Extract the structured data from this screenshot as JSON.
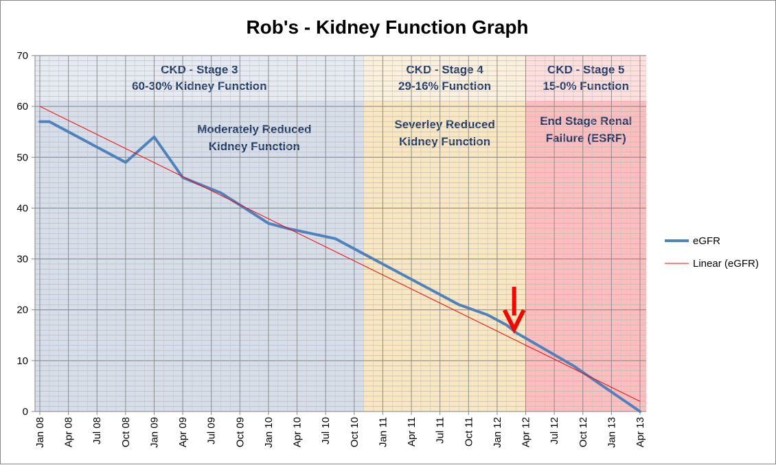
{
  "chart_data": {
    "type": "line",
    "title": "Rob's - Kidney Function Graph",
    "xlabel": "",
    "ylabel": "",
    "ylim": [
      0,
      70
    ],
    "y_ticks": [
      0,
      10,
      20,
      30,
      40,
      50,
      60,
      70
    ],
    "x_range": [
      "2008-01",
      "2013-04"
    ],
    "x_tick_labels": [
      "Jan 08",
      "Apr 08",
      "Jul 08",
      "Oct 08",
      "Jan 09",
      "Apr 09",
      "Jul 09",
      "Oct 09",
      "Jan 10",
      "Apr 10",
      "Jul 10",
      "Oct 10",
      "Jan 11",
      "Apr 11",
      "Jul 11",
      "Oct 11",
      "Jan 12",
      "Apr 12",
      "Jul 12",
      "Oct 12",
      "Jan 13",
      "Apr 13"
    ],
    "x_tick_months": [
      "2008-01",
      "2008-04",
      "2008-07",
      "2008-10",
      "2009-01",
      "2009-04",
      "2009-07",
      "2009-10",
      "2010-01",
      "2010-04",
      "2010-07",
      "2010-10",
      "2011-01",
      "2011-04",
      "2011-07",
      "2011-10",
      "2012-01",
      "2012-04",
      "2012-07",
      "2012-10",
      "2013-01",
      "2013-04"
    ],
    "grid": true,
    "legend_position": "right",
    "series": [
      {
        "name": "eGFR",
        "color": "#4f81bd",
        "points": [
          {
            "x": "2008-01",
            "y": 57
          },
          {
            "x": "2008-02",
            "y": 57
          },
          {
            "x": "2008-04",
            "y": 55
          },
          {
            "x": "2008-10",
            "y": 49
          },
          {
            "x": "2009-01",
            "y": 54
          },
          {
            "x": "2009-04",
            "y": 46
          },
          {
            "x": "2009-08",
            "y": 43
          },
          {
            "x": "2010-01",
            "y": 37
          },
          {
            "x": "2010-03",
            "y": 36
          },
          {
            "x": "2010-08",
            "y": 34
          },
          {
            "x": "2010-11",
            "y": 31
          },
          {
            "x": "2011-01",
            "y": 29
          },
          {
            "x": "2011-05",
            "y": 25
          },
          {
            "x": "2011-09",
            "y": 21
          },
          {
            "x": "2011-12",
            "y": 19
          },
          {
            "x": "2012-02",
            "y": 17
          },
          {
            "x": "2012-03",
            "y": 15.5
          },
          {
            "x": "2012-09",
            "y": 9
          },
          {
            "x": "2013-04",
            "y": 0
          }
        ]
      },
      {
        "name": "Linear (eGFR)",
        "color": "#ff0000",
        "type": "trendline",
        "points": [
          {
            "x": "2008-01",
            "y": 60
          },
          {
            "x": "2013-04",
            "y": 2
          }
        ]
      }
    ],
    "bands": [
      {
        "x_start": "2008-01",
        "x_end": "2010-11",
        "color": "#d6deea",
        "header_color": "#e6eaf2",
        "stage": "CKD - Stage 3",
        "range": "60-30% Kidney Function",
        "desc1": "Moderately Reduced",
        "desc2": "Kidney Function"
      },
      {
        "x_start": "2010-11",
        "x_end": "2012-04",
        "color": "#f8e7c1",
        "header_color": "#faf0dc",
        "stage": "CKD - Stage 4",
        "range": "29-16% Function",
        "desc1": "Severley Reduced",
        "desc2": "Kidney Function"
      },
      {
        "x_start": "2012-04",
        "x_end": "2013-05",
        "color": "#ffbdbd",
        "header_color": "#ffdede",
        "stage": "CKD - Stage 5",
        "range": "15-0% Function",
        "desc1": "End Stage Renal",
        "desc2": "Failure (ESRF)"
      }
    ],
    "annotations": [
      {
        "type": "arrow",
        "x": "2012-03",
        "y": 15.5,
        "color": "#ff0000",
        "direction": "down"
      }
    ]
  }
}
